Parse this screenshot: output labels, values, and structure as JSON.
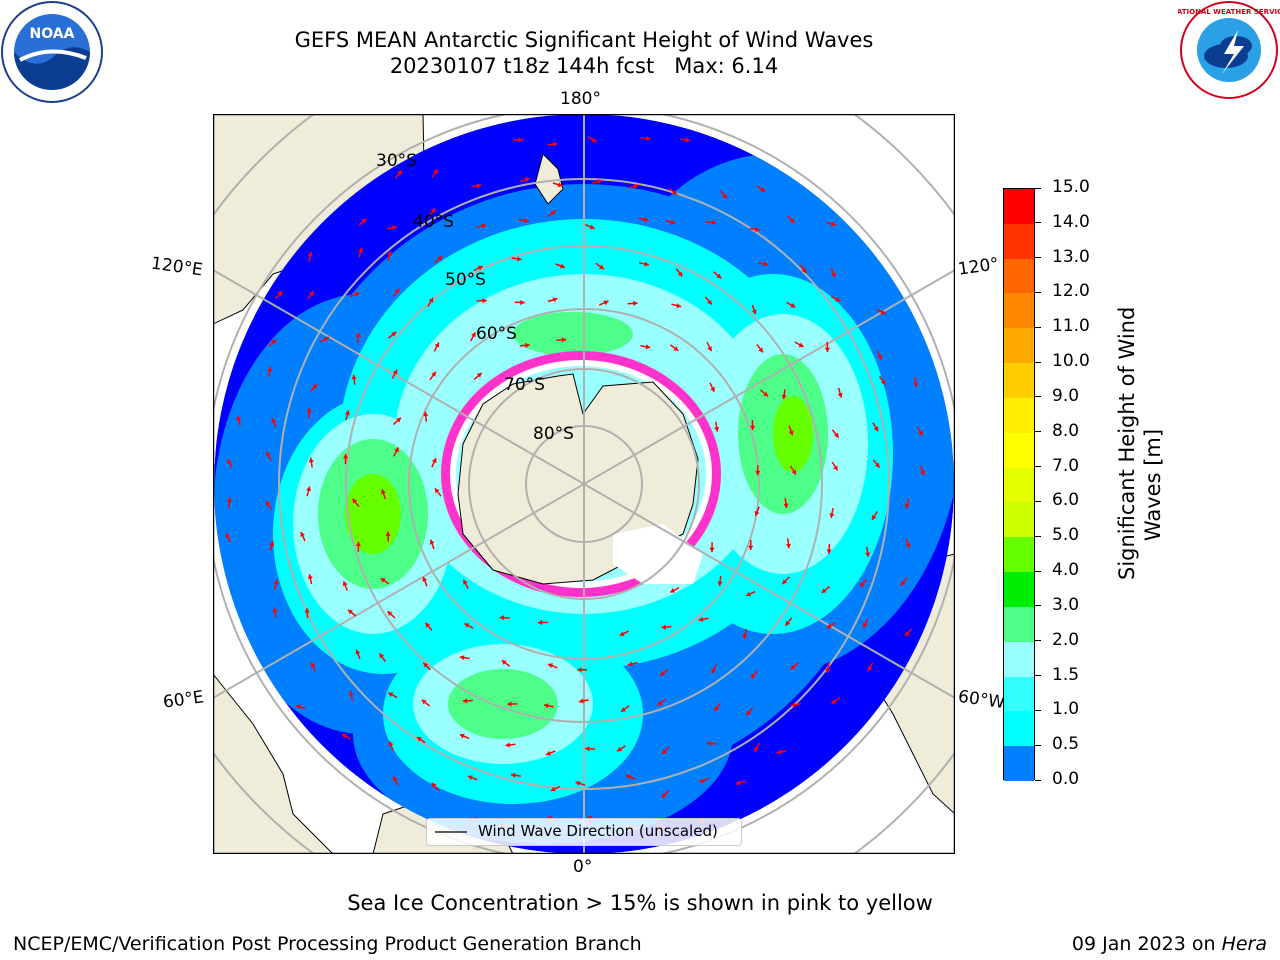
{
  "title": {
    "line1": "GEFS MEAN Antarctic Significant Height of Wind Waves",
    "line2": "20230107 t18z 144h fcst",
    "max_label": "Max: 6.14"
  },
  "map": {
    "lon_labels": {
      "top": "180°",
      "bottom": "0°",
      "upper_left": "120°E",
      "upper_right": "120°",
      "lower_left": "60°E",
      "lower_right": "60°W"
    },
    "lat_labels": [
      "30°S",
      "40°S",
      "50°S",
      "60°S",
      "70°S",
      "80°S"
    ],
    "legend_label": "Wind Wave Direction (unscaled)",
    "colors": {
      "land": "#efedda",
      "ocean_0": "#0000ff",
      "ocean_05": "#0080ff",
      "ocean_1": "#00ffff",
      "ocean_2": "#99ffff",
      "green": "#4dff4d",
      "ice_pink": "#ff33cc",
      "arrow": "#ff0000"
    }
  },
  "colorbar": {
    "label_line1": "Significant Height of Wind",
    "label_line2": "Waves [m]",
    "ticks": [
      "15.0",
      "14.0",
      "13.0",
      "12.0",
      "11.0",
      "10.0",
      "9.0",
      "8.0",
      "7.0",
      "6.0",
      "5.0",
      "4.0",
      "3.0",
      "2.0",
      "1.5",
      "1.0",
      "0.5",
      "0.0"
    ],
    "colors": [
      "#ff0000",
      "#ff3300",
      "#ff6600",
      "#ff8800",
      "#ffaa00",
      "#ffcc00",
      "#ffee00",
      "#ffff00",
      "#e6ff00",
      "#ccff00",
      "#66ff00",
      "#00ee00",
      "#4dff88",
      "#99ffff",
      "#33ffff",
      "#00ffff",
      "#0080ff",
      "#0000ff"
    ]
  },
  "logos": {
    "noaa_text": "NOAA",
    "nws_text": "NATIONAL WEATHER SERVICE"
  },
  "note": "Sea Ice Concentration > 15% is shown in pink to yellow",
  "footer": {
    "left": "NCEP/EMC/Verification Post Processing Product Generation Branch",
    "date": "09 Jan 2023 on",
    "host": "Hera"
  }
}
